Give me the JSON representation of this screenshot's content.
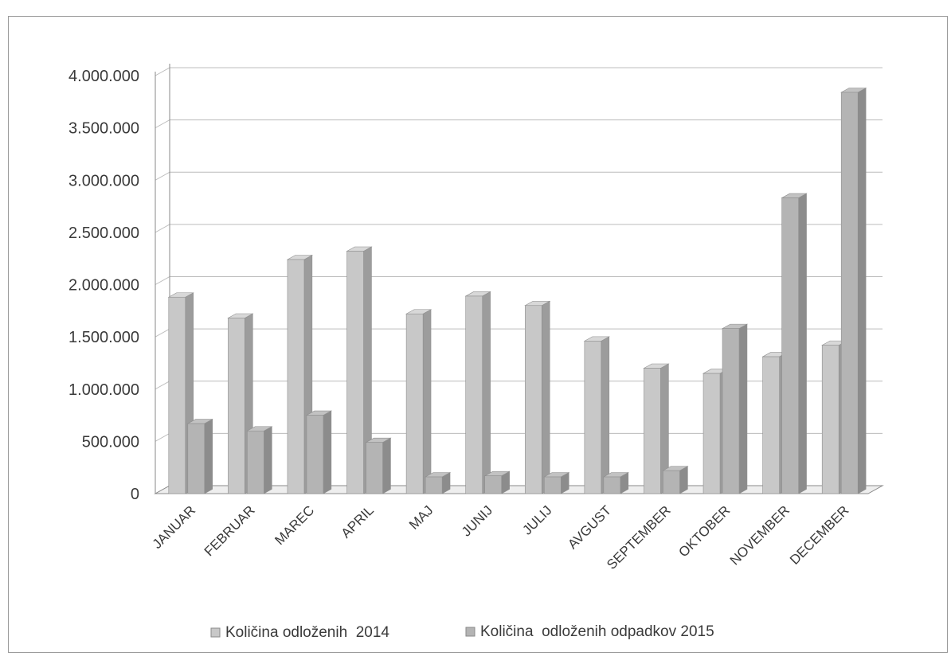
{
  "chart_data": {
    "type": "bar",
    "categories": [
      "JANUAR",
      "FEBRUAR",
      "MAREC",
      "APRIL",
      "MAJ",
      "JUNIJ",
      "JULIJ",
      "AVGUST",
      "SEPTEMBER",
      "OKTOBER",
      "NOVEMBER",
      "DECEMBER"
    ],
    "series": [
      {
        "name": "Količina odloženih  2014",
        "values": [
          1880000,
          1680000,
          2240000,
          2320000,
          1720000,
          1890000,
          1800000,
          1460000,
          1200000,
          1150000,
          1310000,
          1420000
        ]
      },
      {
        "name": "Količina  odloženih odpadkov 2015",
        "values": [
          670000,
          600000,
          750000,
          490000,
          160000,
          170000,
          160000,
          160000,
          220000,
          1580000,
          2830000,
          3840000
        ]
      }
    ],
    "y_ticks": [
      "4.000.000",
      "3.500.000",
      "3.000.000",
      "2.500.000",
      "2.000.000",
      "1.500.000",
      "1.000.000",
      "500.000",
      "0"
    ],
    "ylim": [
      0,
      4000000
    ],
    "grid": true,
    "legend_position": "bottom",
    "colors": {
      "series_2014": "#c8c8c8",
      "series_2015": "#b4b4b4",
      "grid": "#bcbcbc",
      "text": "#3a3a3a"
    }
  }
}
